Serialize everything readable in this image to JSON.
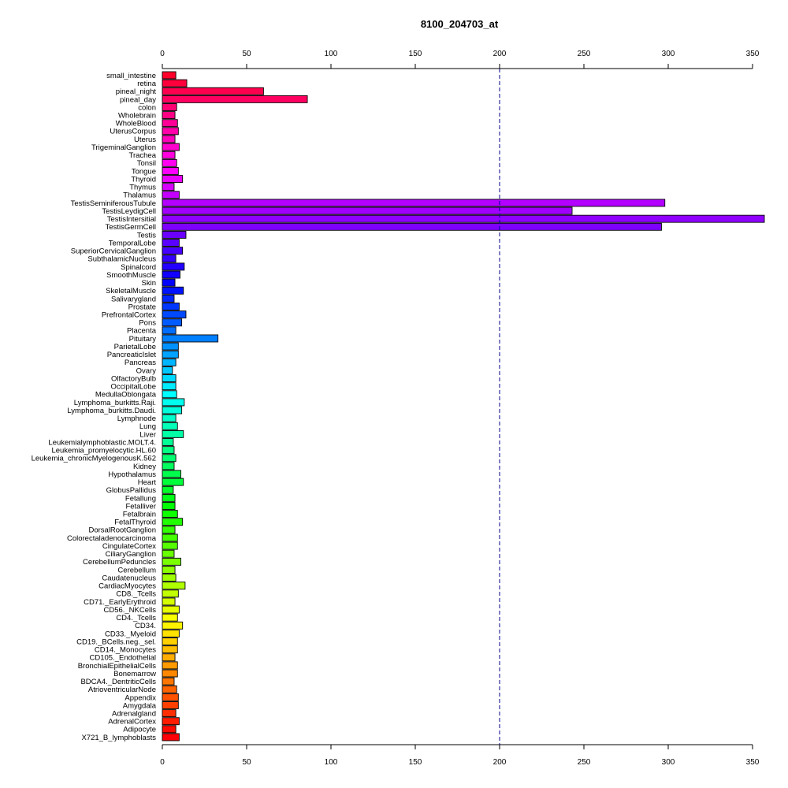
{
  "chart_data": {
    "type": "bar",
    "orientation": "horizontal",
    "title": "8100_204703_at",
    "xlim": [
      0,
      350
    ],
    "x_ticks": [
      0,
      50,
      100,
      150,
      200,
      250,
      300,
      350
    ],
    "x_tick_labels": [
      "0",
      "50",
      "100",
      "150",
      "200",
      "250",
      "300",
      "350"
    ],
    "axes_positions": [
      "top",
      "bottom"
    ],
    "reference_line": {
      "value": 200,
      "style": "dashed",
      "color": "#00008B"
    },
    "grid": false,
    "bar_color_scheme": "rainbow (red at top through magenta, purple, blue, cyan, green, yellow to red at bottom)",
    "bar_border_color": "#000000",
    "categories": [
      "small_intestine",
      "retina",
      "pineal_night",
      "pineal_day",
      "colon",
      "Wholebrain",
      "WholeBlood",
      "UterusCorpus",
      "Uterus",
      "TrigeminalGanglion",
      "Trachea",
      "Tonsil",
      "Tongue",
      "Thyroid",
      "Thymus",
      "Thalamus",
      "TestisSeminiferousTubule",
      "TestisLeydigCell",
      "TestisIntersitial",
      "TestisGermCell",
      "Testis",
      "TemporalLobe",
      "SuperiorCervicalGanglion",
      "SubthalamicNucleus",
      "Spinalcord",
      "SmoothMuscle",
      "Skin",
      "SkeletalMuscle",
      "Salivarygland",
      "Prostate",
      "PrefrontalCortex",
      "Pons",
      "Placenta",
      "Pituitary",
      "ParietalLobe",
      "PancreaticIslet",
      "Pancreas",
      "Ovary",
      "OlfactoryBulb",
      "OccipitalLobe",
      "MedullaOblongata",
      "Lymphoma_burkitts.Raji.",
      "Lymphoma_burkitts.Daudi.",
      "Lymphnode",
      "Lung",
      "Liver",
      "Leukemialymphoblastic.MOLT.4.",
      "Leukemia_promyelocytic.HL.60",
      "Leukemia_chronicMyelogenousK.562",
      "Kidney",
      "Hypothalamus",
      "Heart",
      "GlobusPallidus",
      "Fetallung",
      "Fetalliver",
      "Fetalbrain",
      "FetalThyroid",
      "DorsalRootGanglion",
      "Colorectaladenocarcinoma",
      "CingulateCortex",
      "CiliaryGanglion",
      "CerebellumPeduncles",
      "Cerebellum",
      "Caudatenucleus",
      "CardiacMyocytes",
      "CD8._Tcells",
      "CD71._EarlyErythroid",
      "CD56._NKCells",
      "CD4._Tcells",
      "CD34.",
      "CD33._Myeloid",
      "CD19._BCells.neg._sel.",
      "CD14._Monocytes",
      "CD105._Endothelial",
      "BronchialEpithelialCells",
      "Bonemarrow",
      "BDCA4._DentriticCells",
      "AtrioventricularNode",
      "Appendix",
      "Amygdala",
      "Adrenalgland",
      "AdrenalCortex",
      "Adipocyte",
      "X721_B_lymphoblasts"
    ],
    "values": [
      8,
      14.5,
      60,
      86,
      8.5,
      7.5,
      9,
      9.5,
      7.5,
      10,
      7.5,
      8.5,
      9.5,
      12,
      7,
      10,
      298,
      243,
      357,
      296,
      14,
      10,
      12,
      8,
      13,
      10.5,
      7.5,
      12.5,
      7,
      10,
      14,
      11.5,
      8,
      33,
      9.5,
      9.5,
      8,
      6,
      8,
      8,
      8.5,
      13,
      11.5,
      8,
      9,
      12.5,
      6.5,
      7,
      8,
      7,
      11,
      12.5,
      6.5,
      7.5,
      7.5,
      9,
      12,
      7.5,
      9,
      9,
      7,
      11,
      7.5,
      8,
      13.5,
      9.5,
      7.5,
      10,
      9,
      12,
      10,
      9,
      9,
      7.5,
      9,
      9,
      7,
      8.5,
      9.5,
      9.5,
      8,
      10,
      8,
      10
    ]
  }
}
